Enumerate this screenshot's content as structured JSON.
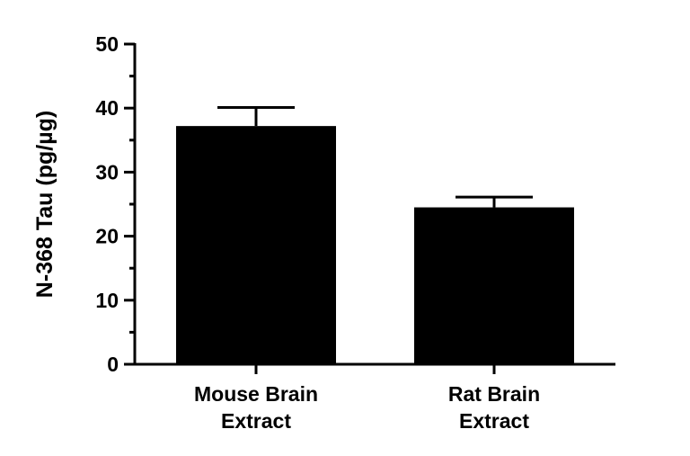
{
  "chart_data": {
    "type": "bar",
    "categories": [
      [
        "Mouse Brain",
        "Extract"
      ],
      [
        "Rat Brain",
        "Extract"
      ]
    ],
    "values": [
      37.2,
      24.5
    ],
    "errors": [
      2.9,
      1.6
    ],
    "title": "",
    "xlabel": "",
    "ylabel": "N-368 Tau (pg/µg)",
    "ylim": [
      0,
      50
    ],
    "yticks": [
      0,
      10,
      20,
      30,
      40,
      50
    ],
    "yminor_step": 5,
    "grid": false,
    "bar_color": "#000000"
  }
}
